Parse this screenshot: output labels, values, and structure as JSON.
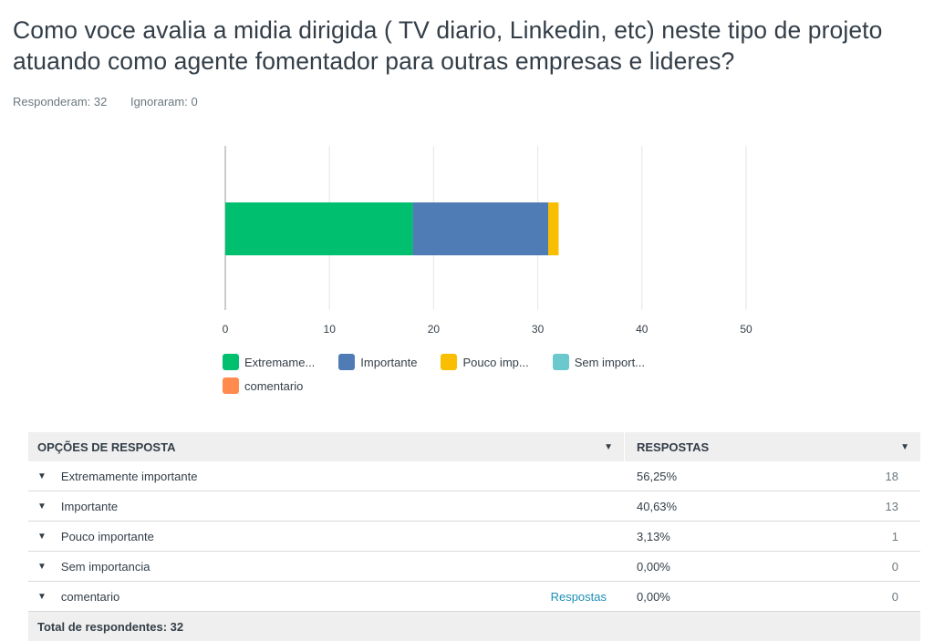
{
  "question": {
    "title": "Como voce avalia a midia dirigida ( TV diario, Linkedin, etc) neste tipo de projeto atuando como agente fomentador para outras empresas e lideres?",
    "answered_label": "Responderam: 32",
    "skipped_label": "Ignoraram: 0"
  },
  "chart_data": {
    "type": "bar",
    "orientation": "horizontal",
    "stacked": true,
    "categories": [
      ""
    ],
    "series": [
      {
        "name": "Extremame...",
        "values": [
          18
        ],
        "color": "#00bf6f"
      },
      {
        "name": "Importante",
        "values": [
          13
        ],
        "color": "#507cb6"
      },
      {
        "name": "Pouco imp...",
        "values": [
          1
        ],
        "color": "#f9be00"
      },
      {
        "name": "Sem import...",
        "values": [
          0
        ],
        "color": "#6bc8cd"
      },
      {
        "name": "comentario",
        "values": [
          0
        ],
        "color": "#ff8b4f"
      }
    ],
    "xlim": [
      0,
      50
    ],
    "xticks": [
      "0",
      "10",
      "20",
      "30",
      "40",
      "50"
    ],
    "grid": true,
    "legend_position": "bottom"
  },
  "table": {
    "header_option": "OPÇÕES DE RESPOSTA",
    "header_responses": "RESPOSTAS",
    "rows": [
      {
        "label": "Extremamente importante",
        "link": "",
        "pct": "56,25%",
        "count": "18"
      },
      {
        "label": "Importante",
        "link": "",
        "pct": "40,63%",
        "count": "13"
      },
      {
        "label": "Pouco importante",
        "link": "",
        "pct": "3,13%",
        "count": "1"
      },
      {
        "label": "Sem importancia",
        "link": "",
        "pct": "0,00%",
        "count": "0"
      },
      {
        "label": "comentario",
        "link": "Respostas",
        "pct": "0,00%",
        "count": "0"
      }
    ],
    "total_label": "Total de respondentes: 32"
  }
}
